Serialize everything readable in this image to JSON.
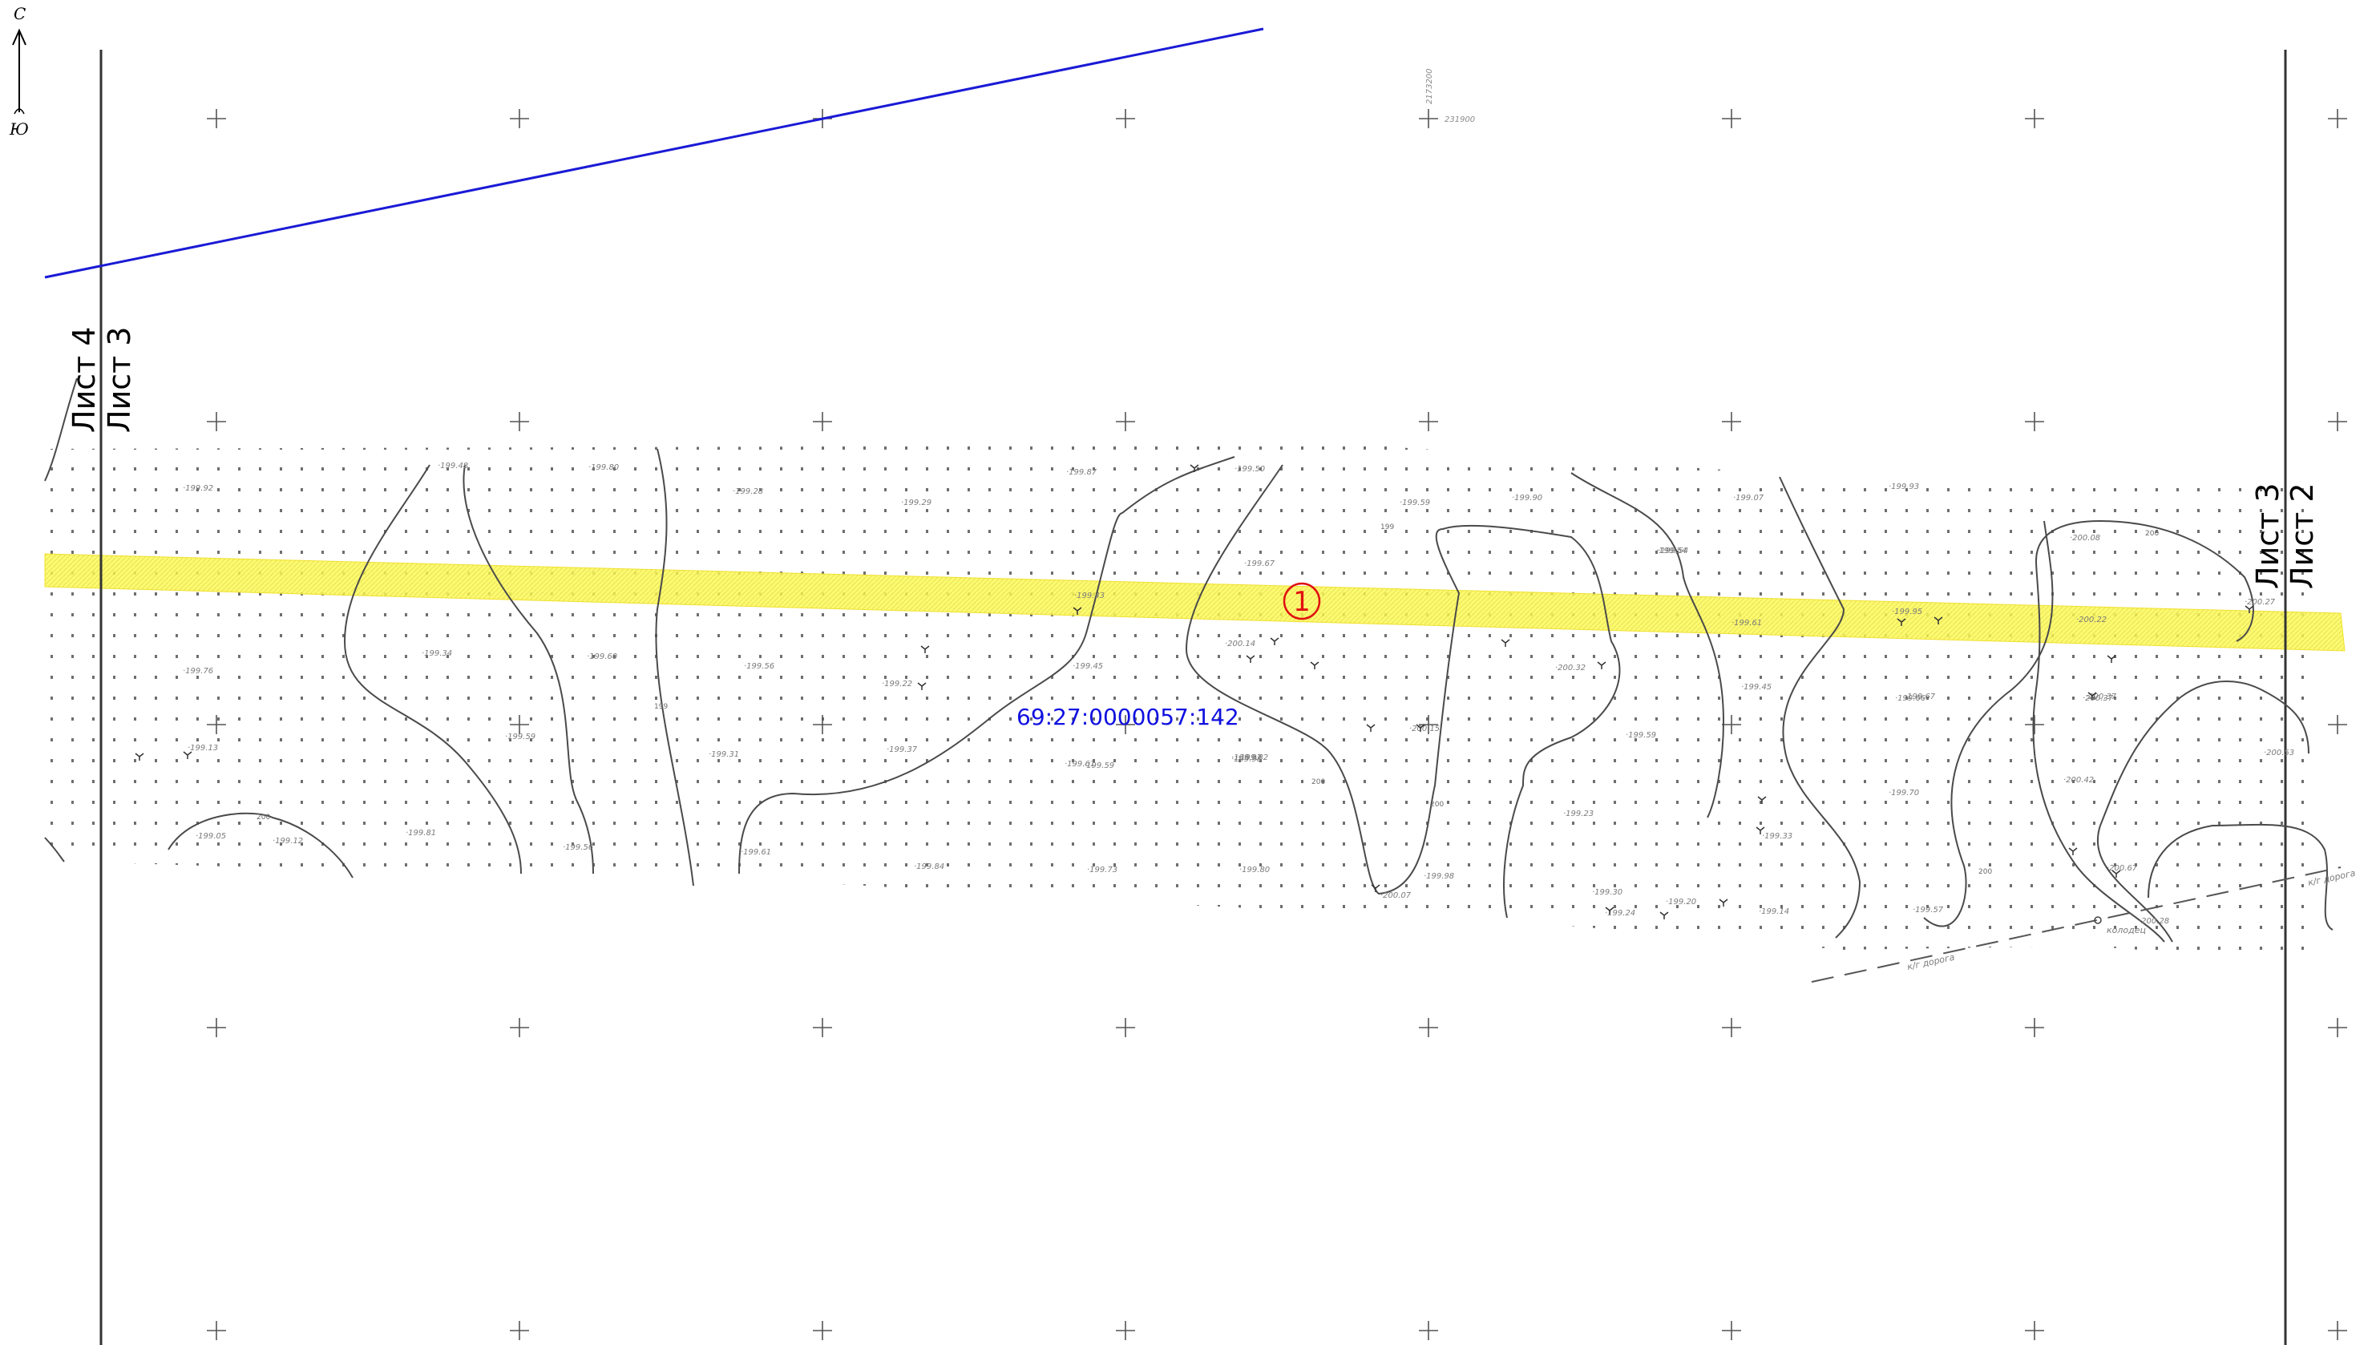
{
  "north_arrow": {
    "north_label": "С",
    "south_label": "Ю"
  },
  "sheet_labels": {
    "left_upper": "Лист 4",
    "left_lower": "Лист 3",
    "right_upper": "Лист 3",
    "right_lower": "Лист 2"
  },
  "parcel": {
    "cadastral_number": "69:27:0000057:142",
    "marker_number": "1"
  },
  "grid_coords": {
    "x_label": "231900",
    "y_label": "2173200"
  },
  "road": {
    "left_label": "к/г дорога",
    "right_label": "к/г дорога",
    "well_label": "колодец"
  },
  "elevations": [
    {
      "v": "199.92"
    },
    {
      "v": "199.48"
    },
    {
      "v": "199.80"
    },
    {
      "v": "199.28"
    },
    {
      "v": "199.29"
    },
    {
      "v": "199.87"
    },
    {
      "v": "199.50"
    },
    {
      "v": "199.59"
    },
    {
      "v": "199.90"
    },
    {
      "v": "199.07"
    },
    {
      "v": "199.93"
    },
    {
      "v": "199.54"
    },
    {
      "v": "199.67"
    },
    {
      "v": "199.43"
    },
    {
      "v": "199.76"
    },
    {
      "v": "199.34"
    },
    {
      "v": "199.60"
    },
    {
      "v": "199.56"
    },
    {
      "v": "199.22"
    },
    {
      "v": "199.45"
    },
    {
      "v": "200.14"
    },
    {
      "v": "200.32"
    },
    {
      "v": "199.45"
    },
    {
      "v": "199.66"
    },
    {
      "v": "200.37"
    },
    {
      "v": "199.13"
    },
    {
      "v": "199.59"
    },
    {
      "v": "199.31"
    },
    {
      "v": "199.37"
    },
    {
      "v": "199.59"
    },
    {
      "v": "199.98"
    },
    {
      "v": "200.15"
    },
    {
      "v": "199.59"
    },
    {
      "v": "199.70"
    },
    {
      "v": "200.42"
    },
    {
      "v": "199.05"
    },
    {
      "v": "199.12"
    },
    {
      "v": "199.81"
    },
    {
      "v": "199.56"
    },
    {
      "v": "199.61"
    },
    {
      "v": "199.84"
    },
    {
      "v": "199.73"
    },
    {
      "v": "199.80"
    },
    {
      "v": "200.07"
    },
    {
      "v": "199.98"
    },
    {
      "v": "199.23"
    },
    {
      "v": "199.33"
    },
    {
      "v": "200.67"
    },
    {
      "v": "199.24"
    },
    {
      "v": "199.20"
    },
    {
      "v": "199.14"
    },
    {
      "v": "199.57"
    },
    {
      "v": "200.08"
    },
    {
      "v": "200.37"
    },
    {
      "v": "200.28"
    },
    {
      "v": "200.53"
    },
    {
      "v": "199.30"
    },
    {
      "v": "199.82"
    },
    {
      "v": "199.67"
    },
    {
      "v": "200.27"
    },
    {
      "v": "199.95"
    },
    {
      "v": "200.22"
    },
    {
      "v": "199.61"
    },
    {
      "v": "199.54"
    },
    {
      "v": "199.61"
    },
    {
      "v": "199.97"
    }
  ],
  "contour_labels": [
    "200",
    "199",
    "200",
    "199",
    "200",
    "200",
    "200"
  ]
}
